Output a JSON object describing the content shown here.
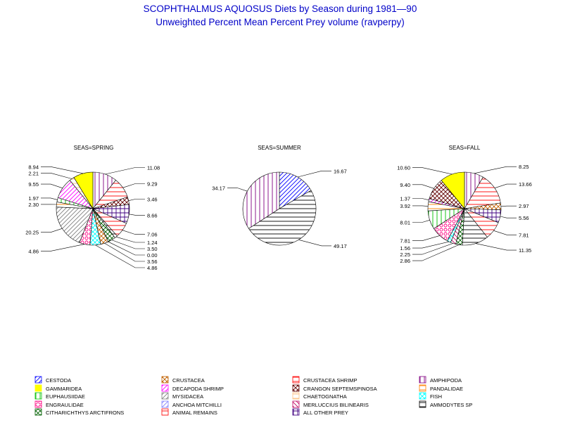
{
  "title": "SCOPHTHALMUS AQUOSUS Diets by Season during 1981—90",
  "subtitle": "Unweighted Percent Mean Percent Prey  volume (ravperpy)",
  "prey": [
    {
      "id": "cestoda",
      "name": "CESTODA",
      "color": "#0000ff",
      "pattern": "diag-r"
    },
    {
      "id": "crustacea",
      "name": "CRUSTACEA",
      "color": "#c06000",
      "pattern": "xhatch"
    },
    {
      "id": "crus_shrimp",
      "name": "CRUSTACEA SHRIMP",
      "color": "#ff0000",
      "pattern": "horiz"
    },
    {
      "id": "amphipoda",
      "name": "AMPHIPODA",
      "color": "#800080",
      "pattern": "vert"
    },
    {
      "id": "gammaridea",
      "name": "GAMMARIDEA",
      "color": "#ffff00",
      "pattern": "solid"
    },
    {
      "id": "decapoda",
      "name": "DECAPODA SHRIMP",
      "color": "#ff00ff",
      "pattern": "diag-r"
    },
    {
      "id": "crangon",
      "name": "CRANGON SEPTEMSPINOSA",
      "color": "#600000",
      "pattern": "xhatch"
    },
    {
      "id": "pandalidae",
      "name": "PANDALIDAE",
      "color": "#ff8000",
      "pattern": "horiz"
    },
    {
      "id": "euphausiidae",
      "name": "EUPHAUSIIDAE",
      "color": "#00c000",
      "pattern": "vert"
    },
    {
      "id": "mysidacea",
      "name": "MYSIDACEA",
      "color": "#808080",
      "pattern": "diag-r"
    },
    {
      "id": "chaetognatha",
      "name": "CHAETOGNATHA",
      "color": "#ffc080",
      "pattern": "horiz"
    },
    {
      "id": "fish",
      "name": "FISH",
      "color": "#00ffff",
      "pattern": "xhatch"
    },
    {
      "id": "engraulidae",
      "name": "ENGRAULIDAE",
      "color": "#ff0080",
      "pattern": "circ"
    },
    {
      "id": "anchoa",
      "name": "ANCHOA MITCHILLI",
      "color": "#8080ff",
      "pattern": "diag-r"
    },
    {
      "id": "merluccius",
      "name": "MERLUCCIUS BILINEARIS",
      "color": "#c00060",
      "pattern": "diag-l"
    },
    {
      "id": "ammodytes",
      "name": "AMMODYTES SP",
      "color": "#000000",
      "pattern": "horiz"
    },
    {
      "id": "citharichthys",
      "name": "CITHARICHTHYS ARCTIFRONS",
      "color": "#006000",
      "pattern": "xhatch"
    },
    {
      "id": "animal_remains",
      "name": "ANIMAL REMAINS",
      "color": "#ff0000",
      "pattern": "horiz"
    },
    {
      "id": "other_prey",
      "name": "ALL OTHER PREY",
      "color": "#400080",
      "pattern": "grid"
    }
  ],
  "chart_data": [
    {
      "type": "pie",
      "title": "SEAS=SPRING",
      "slices": [
        {
          "prey": "amphipoda",
          "value": 11.08
        },
        {
          "prey": "crus_shrimp",
          "value": 9.29
        },
        {
          "prey": "crangon",
          "value": 3.46
        },
        {
          "prey": "other_prey",
          "value": 8.66
        },
        {
          "prey": "animal_remains",
          "value": 7.06
        },
        {
          "prey": "ammodytes",
          "value": 1.24
        },
        {
          "prey": "citharichthys",
          "value": 3.5
        },
        {
          "prey": "merluccius",
          "value": 0.0
        },
        {
          "prey": "crustacea",
          "value": 3.56
        },
        {
          "prey": "fish",
          "value": 4.86
        },
        {
          "prey": "engraulidae",
          "value": 4.86
        },
        {
          "prey": "mysidacea",
          "value": 20.25
        },
        {
          "prey": "pandalidae",
          "value": 2.3
        },
        {
          "prey": "euphausiidae",
          "value": 1.97
        },
        {
          "prey": "decapoda",
          "value": 9.55
        },
        {
          "prey": "chaetognatha",
          "value": 2.21
        },
        {
          "prey": "gammaridea",
          "value": 8.94
        }
      ]
    },
    {
      "type": "pie",
      "title": "SEAS=SUMMER",
      "slices": [
        {
          "prey": "cestoda",
          "value": 16.67
        },
        {
          "prey": "ammodytes",
          "value": 49.17
        },
        {
          "prey": "amphipoda",
          "value": 34.17
        }
      ]
    },
    {
      "type": "pie",
      "title": "SEAS=FALL",
      "slices": [
        {
          "prey": "amphipoda",
          "value": 8.25
        },
        {
          "prey": "crus_shrimp",
          "value": 13.66
        },
        {
          "prey": "crustacea",
          "value": 2.97
        },
        {
          "prey": "other_prey",
          "value": 5.56
        },
        {
          "prey": "animal_remains",
          "value": 7.81
        },
        {
          "prey": "ammodytes",
          "value": 11.35
        },
        {
          "prey": "citharichthys",
          "value": 2.86
        },
        {
          "prey": "merluccius",
          "value": 2.25
        },
        {
          "prey": "fish",
          "value": 1.56
        },
        {
          "prey": "engraulidae",
          "value": 7.81
        },
        {
          "prey": "euphausiidae",
          "value": 8.01
        },
        {
          "prey": "pandalidae",
          "value": 3.92
        },
        {
          "prey": "decapoda",
          "value": 1.37
        },
        {
          "prey": "crangon",
          "value": 9.4
        },
        {
          "prey": "gammaridea",
          "value": 10.6
        }
      ]
    }
  ]
}
